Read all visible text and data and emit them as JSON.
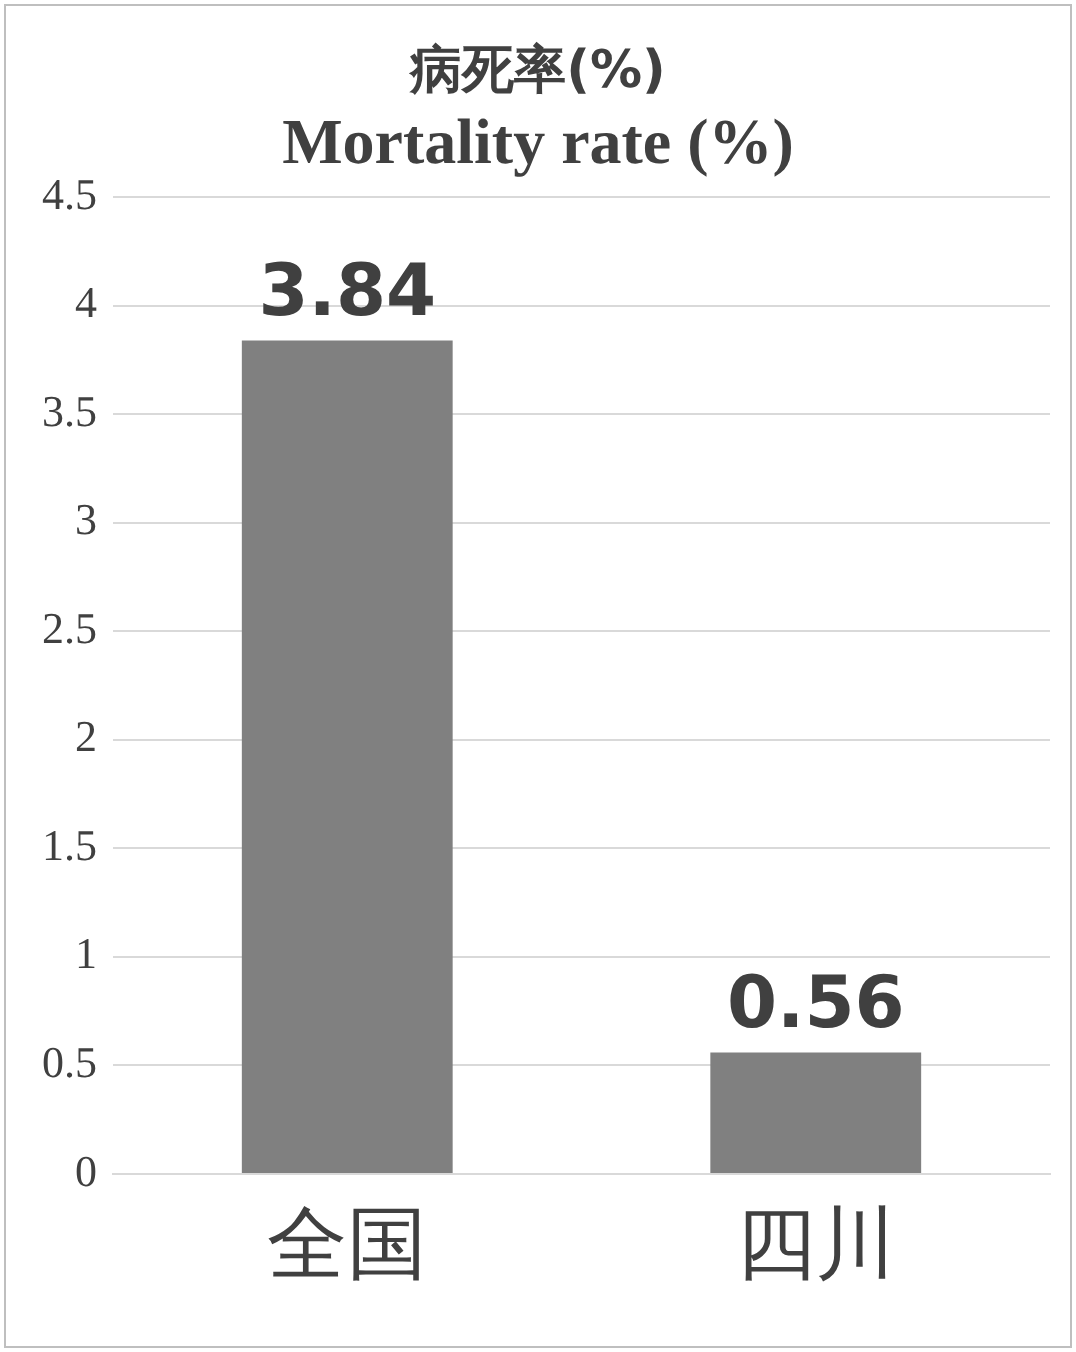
{
  "chart_data": {
    "type": "bar",
    "title": "病死率(%)",
    "subtitle": "Mortality rate (%)",
    "categories": [
      "全国",
      "四川"
    ],
    "values": [
      3.84,
      0.56
    ],
    "color": "#808080",
    "ylim": [
      0,
      4.5
    ],
    "yticks": [
      0,
      0.5,
      1,
      1.5,
      2,
      2.5,
      3,
      3.5,
      4,
      4.5
    ],
    "grid": "y",
    "data_labels": true,
    "legend": false
  }
}
